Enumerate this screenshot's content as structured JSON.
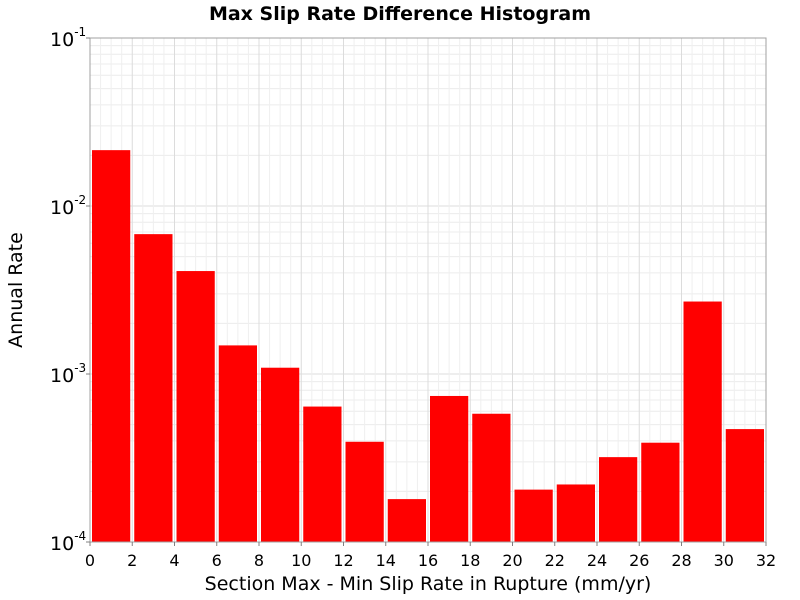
{
  "chart_data": {
    "type": "bar",
    "title": "Max Slip Rate Difference Histogram",
    "xlabel": "Section Max - Min Slip Rate in Rupture (mm/yr)",
    "ylabel": "Annual Rate",
    "x_scale": "linear",
    "y_scale": "log",
    "xlim": [
      0,
      32
    ],
    "ylim": [
      0.0001,
      0.1
    ],
    "bin_width": 2,
    "x_ticks": [
      "0",
      "2",
      "4",
      "6",
      "8",
      "10",
      "12",
      "14",
      "16",
      "18",
      "20",
      "22",
      "24",
      "26",
      "28",
      "30",
      "32"
    ],
    "y_ticks": [
      {
        "base": "10",
        "exp": "-4"
      },
      {
        "base": "10",
        "exp": "-3"
      },
      {
        "base": "10",
        "exp": "-2"
      },
      {
        "base": "10",
        "exp": "-1"
      }
    ],
    "bins": [
      0,
      2,
      4,
      6,
      8,
      10,
      12,
      14,
      16,
      18,
      20,
      22,
      24,
      26,
      28,
      30
    ],
    "values": [
      0.0215,
      0.0068,
      0.0041,
      0.00148,
      0.00109,
      0.00064,
      0.000395,
      0.00018,
      0.00074,
      0.00058,
      0.000205,
      0.00022,
      0.00032,
      0.00039,
      0.0027,
      0.00047
    ],
    "bar_color": "#ff0000",
    "grid": true,
    "legend": "none"
  }
}
